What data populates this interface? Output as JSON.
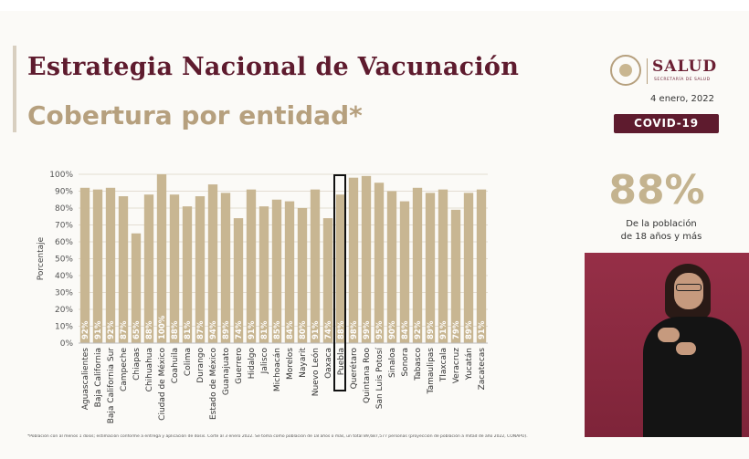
{
  "header": {
    "title": "Estrategia Nacional de Vacunación",
    "subtitle": "Cobertura por entidad*"
  },
  "branding": {
    "logo_text": "SALUD",
    "logo_subtext": "SECRETARÍA DE SALUD",
    "date": "4 enero, 2022",
    "badge": "COVID-19",
    "colors": {
      "primary": "#5e1b2e",
      "accent": "#b6a07e",
      "bar": "#c8b692"
    }
  },
  "summary": {
    "value": "88%",
    "note_line1": "De la población",
    "note_line2": "de 18 años y más"
  },
  "chart_data": {
    "type": "bar",
    "ylabel": "Porcentaje",
    "ylim": [
      0,
      100
    ],
    "yticks": [
      "0%",
      "10%",
      "20%",
      "30%",
      "40%",
      "50%",
      "60%",
      "70%",
      "80%",
      "90%",
      "100%"
    ],
    "grid": true,
    "categories": [
      "Aguascalientes",
      "Baja California",
      "Baja California Sur",
      "Campeche",
      "Chiapas",
      "Chihuahua",
      "Ciudad de México",
      "Coahuila",
      "Colima",
      "Durango",
      "Estado de México",
      "Guanajuato",
      "Guerrero",
      "Hidalgo",
      "Jalisco",
      "Michoacán",
      "Morelos",
      "Nayarit",
      "Nuevo León",
      "Oaxaca",
      "Puebla",
      "Querétaro",
      "Quintana Roo",
      "San Luis Potosí",
      "Sinaloa",
      "Sonora",
      "Tabasco",
      "Tamaulipas",
      "Tlaxcala",
      "Veracruz",
      "Yucatán",
      "Zacatecas"
    ],
    "values": [
      92,
      91,
      92,
      87,
      65,
      88,
      100,
      88,
      81,
      87,
      94,
      89,
      74,
      91,
      81,
      85,
      84,
      80,
      91,
      74,
      88,
      98,
      99,
      95,
      90,
      84,
      92,
      89,
      91,
      79,
      89,
      91
    ],
    "value_labels": [
      "92%",
      "91%",
      "92%",
      "87%",
      "65%",
      "88%",
      "100%",
      "88%",
      "81%",
      "87%",
      "94%",
      "89%",
      "74%",
      "91%",
      "81%",
      "85%",
      "84%",
      "80%",
      "91%",
      "74%",
      "88%",
      "98%",
      "99%",
      "95%",
      "90%",
      "84%",
      "92%",
      "89%",
      "91%",
      "79%",
      "89%",
      "91%"
    ],
    "highlighted_category": "Puebla"
  },
  "footnote": "*Población con al menos 1 dosis; estimación conforme a entrega y aplicación de dosis. Corte al 3 enero 2022. Se toma como población de 18 años o más, un total 89,687,577 personas (proyección de población a mitad de año 2022, CONAPO)."
}
